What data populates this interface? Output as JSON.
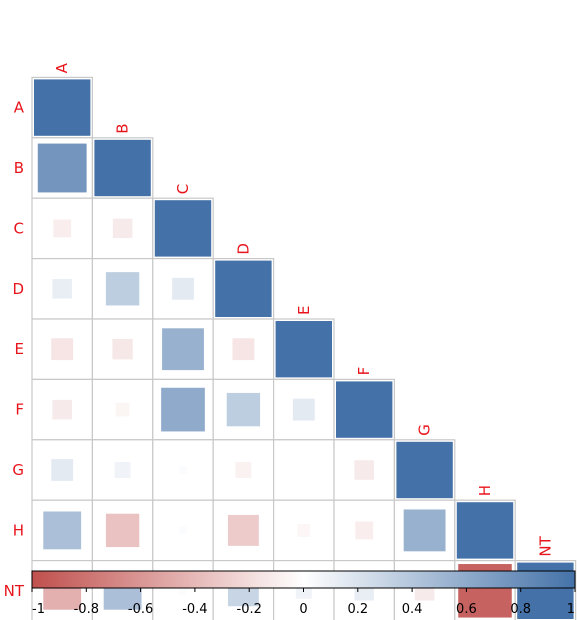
{
  "chart_data": {
    "type": "heatmap",
    "variables": [
      "A",
      "B",
      "C",
      "D",
      "E",
      "F",
      "G",
      "H",
      "NT"
    ],
    "layout": "lower-triangle",
    "matrix": [
      [
        1.0
      ],
      [
        0.75,
        1.0
      ],
      [
        -0.1,
        -0.12,
        1.0
      ],
      [
        0.12,
        0.35,
        0.15,
        1.0
      ],
      [
        -0.15,
        -0.13,
        0.55,
        -0.15,
        1.0
      ],
      [
        -0.12,
        -0.06,
        0.6,
        0.35,
        0.15,
        1.0
      ],
      [
        0.15,
        0.08,
        0.02,
        -0.08,
        0.0,
        -0.12,
        1.0
      ],
      [
        0.45,
        -0.35,
        0.02,
        -0.3,
        -0.05,
        -0.1,
        0.55,
        1.0
      ],
      [
        -0.45,
        0.45,
        0.02,
        0.3,
        0.08,
        0.12,
        -0.12,
        -0.9,
        1.0
      ]
    ],
    "colorbar": {
      "min": -1,
      "max": 1,
      "ticks": [
        "-1",
        "-0.8",
        "-0.6",
        "-0.4",
        "-0.2",
        "0",
        "0.2",
        "0.4",
        "0.6",
        "0.8",
        "1"
      ],
      "colors": {
        "negative": "#c0504d",
        "neutral": "#ffffff",
        "positive": "#4472a8"
      }
    },
    "label_color": "#e8141c",
    "grid_color": "#c8c8c8"
  }
}
